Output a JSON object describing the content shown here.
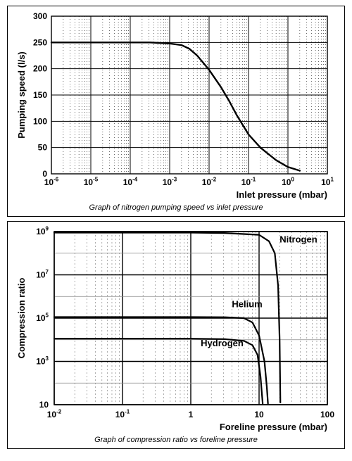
{
  "chart1": {
    "type": "line",
    "caption": "Graph of nitrogen pumping speed vs inlet pressure",
    "xlabel": "Inlet pressure (mbar)",
    "ylabel": "Pumping speed (l/s)",
    "label_fontsize": 13,
    "label_fontweight": "bold",
    "tick_fontsize": 12,
    "tick_fontweight": "bold",
    "xscale": "log",
    "yscale": "linear",
    "xlim": [
      1e-06,
      10
    ],
    "ylim": [
      0,
      300
    ],
    "ytick_step": 50,
    "yticks": [
      0,
      50,
      100,
      150,
      200,
      250,
      300
    ],
    "xticks_exp": [
      -6,
      -5,
      -4,
      -3,
      -2,
      -1,
      0,
      1
    ],
    "background_color": "#ffffff",
    "major_grid_color": "#000000",
    "minor_grid_dash": "1 3",
    "line_color": "#000000",
    "line_width": 2.4,
    "series": {
      "nitrogen": {
        "x": [
          1e-06,
          1e-05,
          0.0001,
          0.000316,
          0.001,
          0.002,
          0.00316,
          0.005,
          0.01,
          0.02,
          0.0316,
          0.05,
          0.1,
          0.2,
          0.316,
          0.5,
          1,
          2
        ],
        "y": [
          250,
          250,
          250,
          250,
          248,
          245,
          238,
          225,
          198,
          165,
          140,
          112,
          75,
          50,
          38,
          26,
          13,
          6
        ]
      }
    },
    "aspect_width": 430,
    "aspect_height": 235
  },
  "chart2": {
    "type": "line",
    "caption": "Graph of compression ratio vs foreline pressure",
    "xlabel": "Foreline pressure (mbar)",
    "ylabel": "Compression ratio",
    "label_fontsize": 13,
    "label_fontweight": "bold",
    "tick_fontsize": 12,
    "tick_fontweight": "bold",
    "xscale": "log",
    "yscale": "log",
    "xlim": [
      0.01,
      100
    ],
    "ylim_exp": [
      1,
      9
    ],
    "yticks_exp": [
      1,
      3,
      5,
      7,
      9
    ],
    "xticks_exp": [
      -2,
      -1,
      0,
      1,
      2
    ],
    "background_color": "#ffffff",
    "major_grid_color": "#000000",
    "minor_grid_dash": "2 3",
    "line_color": "#000000",
    "line_width": 2.2,
    "series": {
      "nitrogen": {
        "label": "Nitrogen",
        "label_x": 20,
        "label_y_exp": 8.5,
        "x": [
          0.01,
          0.1,
          1,
          3.16,
          10,
          14,
          17,
          19,
          20,
          20.5
        ],
        "y_exp": [
          8.95,
          8.95,
          8.95,
          8.93,
          8.85,
          8.55,
          8.0,
          6.5,
          4.0,
          1.1
        ]
      },
      "helium": {
        "label": "Helium",
        "label_x": 4,
        "label_y_exp": 5.5,
        "x": [
          0.01,
          0.1,
          1,
          3.16,
          6,
          8,
          10,
          12,
          13,
          13.5
        ],
        "y_exp": [
          5.05,
          5.05,
          5.05,
          5.04,
          5.0,
          4.8,
          4.2,
          3.0,
          1.8,
          1.05
        ]
      },
      "hydrogen": {
        "label": "Hydrogen",
        "label_x": 1.4,
        "label_y_exp": 3.7,
        "x": [
          0.01,
          0.1,
          1,
          3.16,
          6,
          8,
          9.5,
          10.5,
          11,
          11.3
        ],
        "y_exp": [
          4.05,
          4.05,
          4.05,
          4.03,
          3.95,
          3.75,
          3.3,
          2.3,
          1.5,
          1.05
        ]
      }
    },
    "aspect_width": 440,
    "aspect_height": 255
  }
}
